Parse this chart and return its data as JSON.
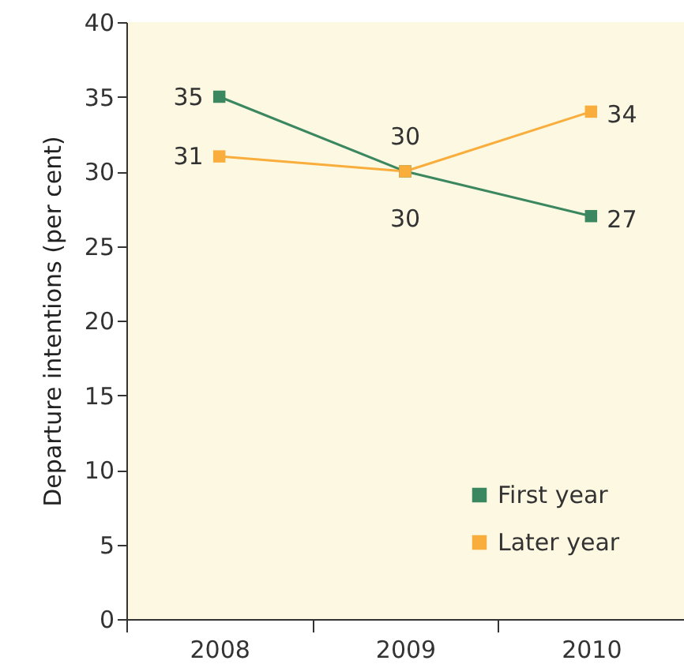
{
  "chart_data": {
    "type": "line",
    "ylabel": "Departure intentions (per cent)",
    "categories": [
      "2008",
      "2009",
      "2010"
    ],
    "series": [
      {
        "name": "First year",
        "color": "#3a8760",
        "values": [
          35,
          30,
          27
        ]
      },
      {
        "name": "Later year",
        "color": "#f9ad3c",
        "values": [
          31,
          30,
          34
        ]
      }
    ],
    "ylim": [
      0,
      40
    ],
    "yticks": [
      0,
      5,
      10,
      15,
      20,
      25,
      30,
      35,
      40
    ],
    "grid": false,
    "legend": "bottom right",
    "marker": "square",
    "line_style": "solid",
    "data_labels": true
  }
}
